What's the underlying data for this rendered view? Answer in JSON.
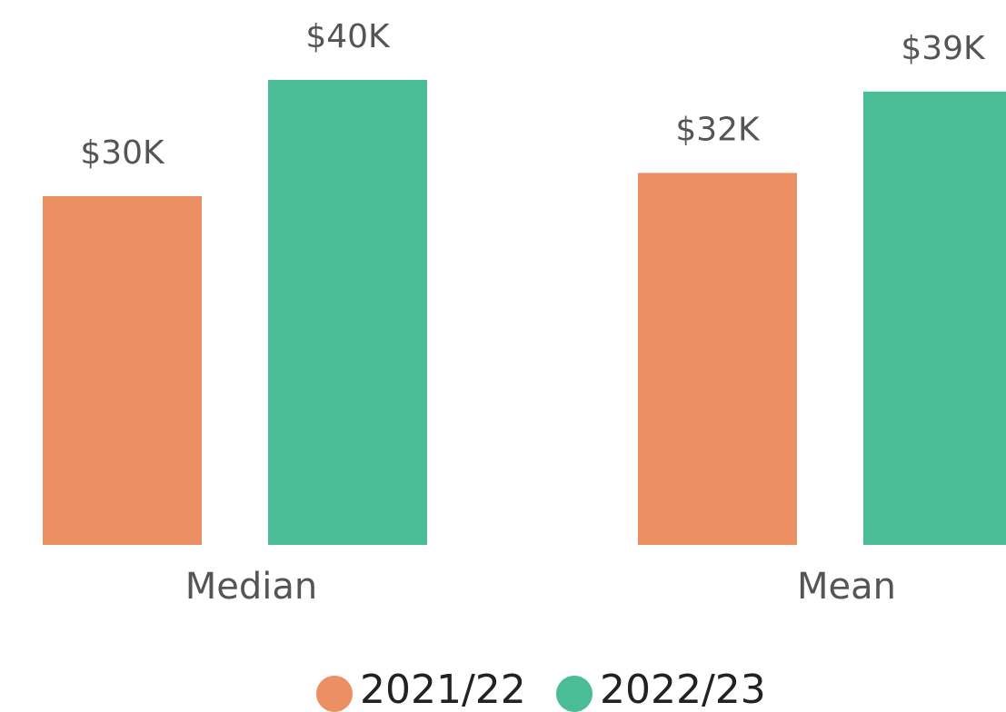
{
  "chart_data": {
    "type": "bar",
    "categories": [
      "Median",
      "Mean"
    ],
    "series": [
      {
        "name": "2021/22",
        "color": "#EC8F63",
        "values": [
          30,
          32
        ],
        "value_labels": [
          "$30K",
          "$32K"
        ]
      },
      {
        "name": "2022/23",
        "color": "#4ABC96",
        "values": [
          40,
          39
        ],
        "value_labels": [
          "$40K",
          "$39K"
        ]
      }
    ]
  }
}
